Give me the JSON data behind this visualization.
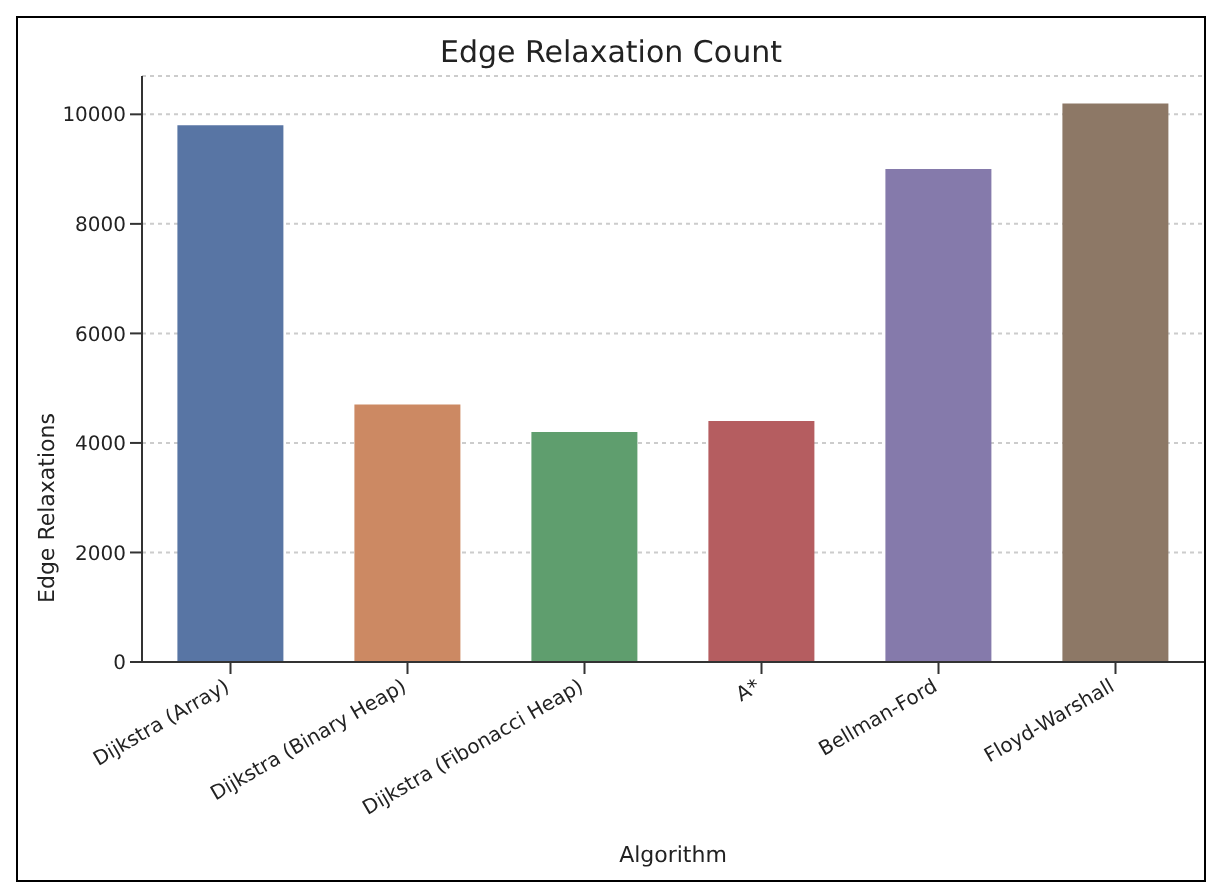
{
  "chart_data": {
    "type": "bar",
    "title": "Edge Relaxation Count",
    "xlabel": "Algorithm",
    "ylabel": "Edge Relaxations",
    "categories": [
      "Dijkstra (Array)",
      "Dijkstra (Binary Heap)",
      "Dijkstra (Fibonacci Heap)",
      "A*",
      "Bellman-Ford",
      "Floyd-Warshall"
    ],
    "values": [
      9800,
      4700,
      4200,
      4400,
      9000,
      10200
    ],
    "colors": [
      "#5875a4",
      "#cc8963",
      "#5f9e6e",
      "#b55d60",
      "#857aab",
      "#8d7866"
    ],
    "ylim": [
      0,
      10700
    ],
    "yticks": [
      0,
      2000,
      4000,
      6000,
      8000,
      10000
    ],
    "grid": "y"
  }
}
